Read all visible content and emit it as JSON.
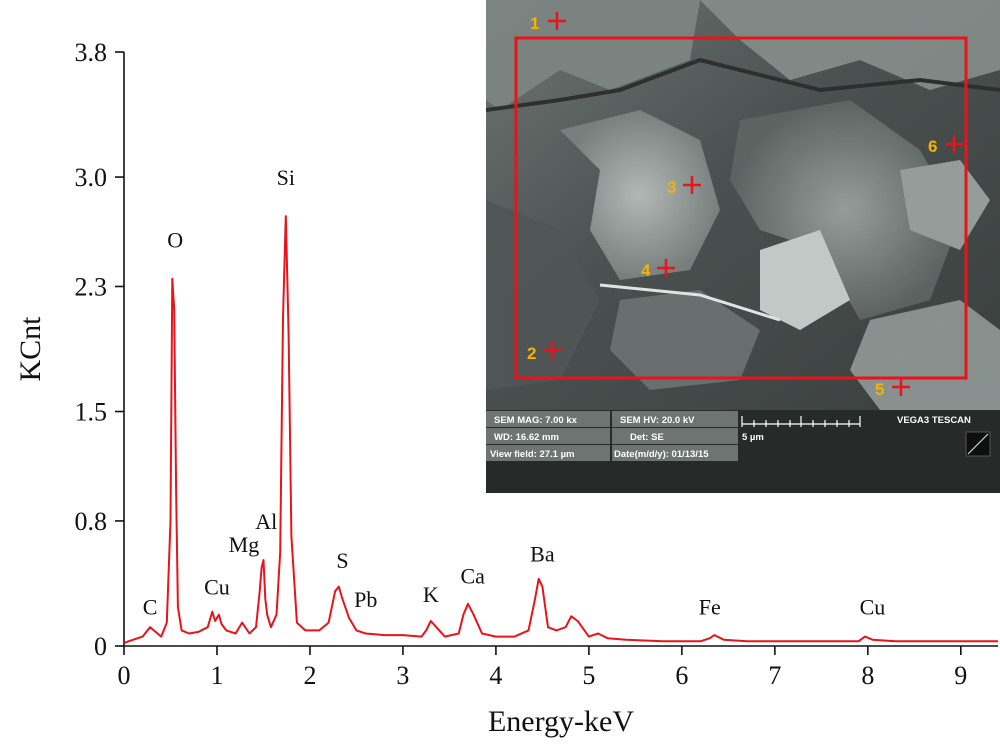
{
  "chart_data": {
    "type": "line",
    "xlabel": "Energy-keV",
    "ylabel": "KCnt",
    "xlim": [
      0,
      9.4
    ],
    "ylim": [
      0,
      3.8
    ],
    "xticks": [
      "0",
      "1",
      "2",
      "3",
      "4",
      "5",
      "6",
      "7",
      "8",
      "9"
    ],
    "yticks": [
      "0",
      "0.8",
      "1.5",
      "2.3",
      "3.0",
      "3.8"
    ],
    "grid": false,
    "series": [
      {
        "color": "#e8131b",
        "x": [
          0.0,
          0.1,
          0.2,
          0.28,
          0.32,
          0.4,
          0.46,
          0.5,
          0.52,
          0.54,
          0.56,
          0.58,
          0.62,
          0.7,
          0.8,
          0.9,
          0.95,
          0.98,
          1.02,
          1.05,
          1.1,
          1.2,
          1.27,
          1.35,
          1.42,
          1.46,
          1.48,
          1.5,
          1.52,
          1.54,
          1.58,
          1.64,
          1.68,
          1.71,
          1.74,
          1.77,
          1.8,
          1.86,
          1.95,
          2.1,
          2.2,
          2.27,
          2.31,
          2.35,
          2.42,
          2.5,
          2.6,
          2.8,
          3.0,
          3.2,
          3.25,
          3.3,
          3.36,
          3.45,
          3.6,
          3.65,
          3.7,
          3.76,
          3.85,
          4.0,
          4.2,
          4.35,
          4.42,
          4.46,
          4.5,
          4.56,
          4.65,
          4.75,
          4.81,
          4.88,
          5.0,
          5.1,
          5.2,
          5.4,
          5.8,
          6.2,
          6.3,
          6.35,
          6.45,
          6.7,
          7.0,
          7.5,
          7.9,
          7.97,
          8.05,
          8.3,
          8.7,
          9.0,
          9.4
        ],
        "y": [
          0.02,
          0.04,
          0.06,
          0.12,
          0.1,
          0.06,
          0.15,
          0.8,
          2.35,
          2.15,
          1.0,
          0.25,
          0.1,
          0.08,
          0.09,
          0.12,
          0.22,
          0.16,
          0.2,
          0.14,
          0.1,
          0.08,
          0.15,
          0.08,
          0.12,
          0.35,
          0.5,
          0.55,
          0.3,
          0.2,
          0.12,
          0.2,
          0.6,
          2.1,
          2.75,
          2.0,
          0.7,
          0.15,
          0.1,
          0.1,
          0.15,
          0.35,
          0.38,
          0.3,
          0.18,
          0.1,
          0.08,
          0.07,
          0.07,
          0.06,
          0.1,
          0.16,
          0.12,
          0.06,
          0.08,
          0.2,
          0.27,
          0.2,
          0.08,
          0.06,
          0.06,
          0.1,
          0.3,
          0.43,
          0.38,
          0.12,
          0.1,
          0.12,
          0.19,
          0.16,
          0.06,
          0.08,
          0.05,
          0.04,
          0.03,
          0.03,
          0.05,
          0.07,
          0.04,
          0.03,
          0.03,
          0.03,
          0.03,
          0.06,
          0.04,
          0.03,
          0.03,
          0.03,
          0.03
        ]
      }
    ],
    "annotations": [
      {
        "text": "C",
        "x": 0.28,
        "y": 0.2
      },
      {
        "text": "O",
        "x": 0.55,
        "y": 2.55
      },
      {
        "text": "Cu",
        "x": 1.0,
        "y": 0.33
      },
      {
        "text": "Mg",
        "x": 1.29,
        "y": 0.6
      },
      {
        "text": "Al",
        "x": 1.53,
        "y": 0.75
      },
      {
        "text": "Si",
        "x": 1.74,
        "y": 2.95
      },
      {
        "text": "S",
        "x": 2.35,
        "y": 0.5
      },
      {
        "text": "Pb",
        "x": 2.6,
        "y": 0.25
      },
      {
        "text": "K",
        "x": 3.3,
        "y": 0.28
      },
      {
        "text": "Ca",
        "x": 3.75,
        "y": 0.4
      },
      {
        "text": "Ba",
        "x": 4.5,
        "y": 0.54
      },
      {
        "text": "Fe",
        "x": 6.3,
        "y": 0.2
      },
      {
        "text": "Cu",
        "x": 8.05,
        "y": 0.2
      }
    ]
  },
  "inset": {
    "points": [
      "1",
      "2",
      "3",
      "4",
      "5",
      "6"
    ],
    "info": {
      "mag": "SEM MAG: 7.00 kx",
      "hv": "SEM HV: 20.0 kV",
      "brand": "VEGA3 TESCAN",
      "wd": "WD: 16.62 mm",
      "det": "Det: SE",
      "scale": "5 µm",
      "viewfield": "View field: 27.1 µm",
      "date": "Date(m/d/y): 01/13/15"
    }
  }
}
